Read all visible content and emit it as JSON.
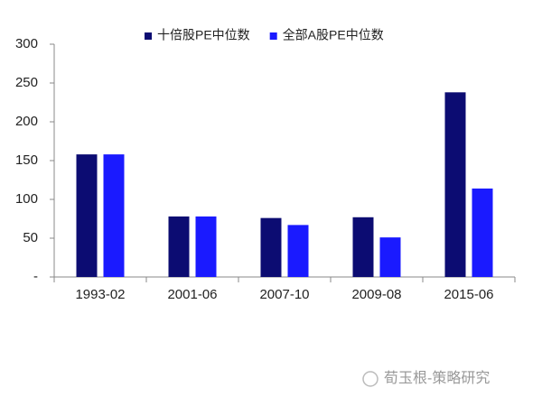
{
  "chart_data": {
    "type": "bar",
    "categories": [
      "1993-02",
      "2001-06",
      "2007-10",
      "2009-08",
      "2015-06"
    ],
    "series": [
      {
        "name": "十倍股PE中位数",
        "color": "#0c0c72",
        "values": [
          158,
          78,
          76,
          77,
          238
        ]
      },
      {
        "name": "全部A股PE中位数",
        "color": "#1a1aff",
        "values": [
          158,
          78,
          67,
          51,
          114
        ]
      }
    ],
    "ylim": [
      0,
      300
    ],
    "yticks": [
      {
        "value": 0,
        "label": "-"
      },
      50,
      100,
      150,
      200,
      250,
      300
    ],
    "grid": false,
    "legend": "top",
    "source": "荀玉根-策略研究"
  }
}
